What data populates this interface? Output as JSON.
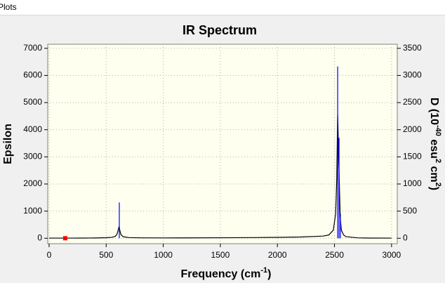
{
  "menu": {
    "label": "Plots"
  },
  "chart_data": {
    "type": "line",
    "title": "IR Spectrum",
    "xlabel": [
      "Frequency (cm",
      "-1",
      ")"
    ],
    "ylabel": "Epsilon",
    "y2label": [
      "D (10",
      "-40",
      " esu",
      "2",
      " cm",
      "2",
      ")"
    ],
    "x": [
      0,
      100,
      200,
      300,
      400,
      500,
      550,
      580,
      595,
      605,
      612,
      615,
      620,
      630,
      650,
      700,
      800,
      1000,
      1200,
      1500,
      1800,
      2000,
      2200,
      2400,
      2450,
      2490,
      2510,
      2520,
      2525,
      2528,
      2532,
      2535,
      2540,
      2545,
      2550,
      2560,
      2580,
      2600,
      2700,
      2800,
      3000
    ],
    "series": [
      {
        "color": "#000000",
        "values": [
          5,
          5,
          6,
          7,
          10,
          20,
          35,
          70,
          150,
          300,
          415,
          400,
          280,
          130,
          55,
          25,
          15,
          12,
          14,
          18,
          25,
          32,
          45,
          80,
          120,
          300,
          900,
          2200,
          3800,
          4560,
          3900,
          3000,
          2500,
          1600,
          800,
          300,
          120,
          60,
          15,
          8,
          5
        ]
      },
      {
        "type": "stick",
        "axis": "y2",
        "color": "#0000ff",
        "x": [
          615,
          2528,
          2540,
          2552
        ],
        "values": [
          660,
          3165,
          1850,
          450
        ]
      },
      {
        "type": "scatter",
        "color": "#ff0000",
        "x": [
          141
        ],
        "values": [
          0
        ]
      }
    ],
    "xlim": [
      -12,
      3050
    ],
    "xticks": [
      0,
      500,
      1000,
      1500,
      2000,
      2500,
      3000
    ],
    "ylim": [
      -200,
      7150
    ],
    "yticks": [
      0,
      1000,
      2000,
      3000,
      4000,
      5000,
      6000,
      7000
    ],
    "y2lim": [
      -100,
      3575
    ],
    "y2ticks": [
      0,
      500,
      1000,
      1500,
      2000,
      2500,
      3000,
      3500
    ],
    "grid": true
  }
}
